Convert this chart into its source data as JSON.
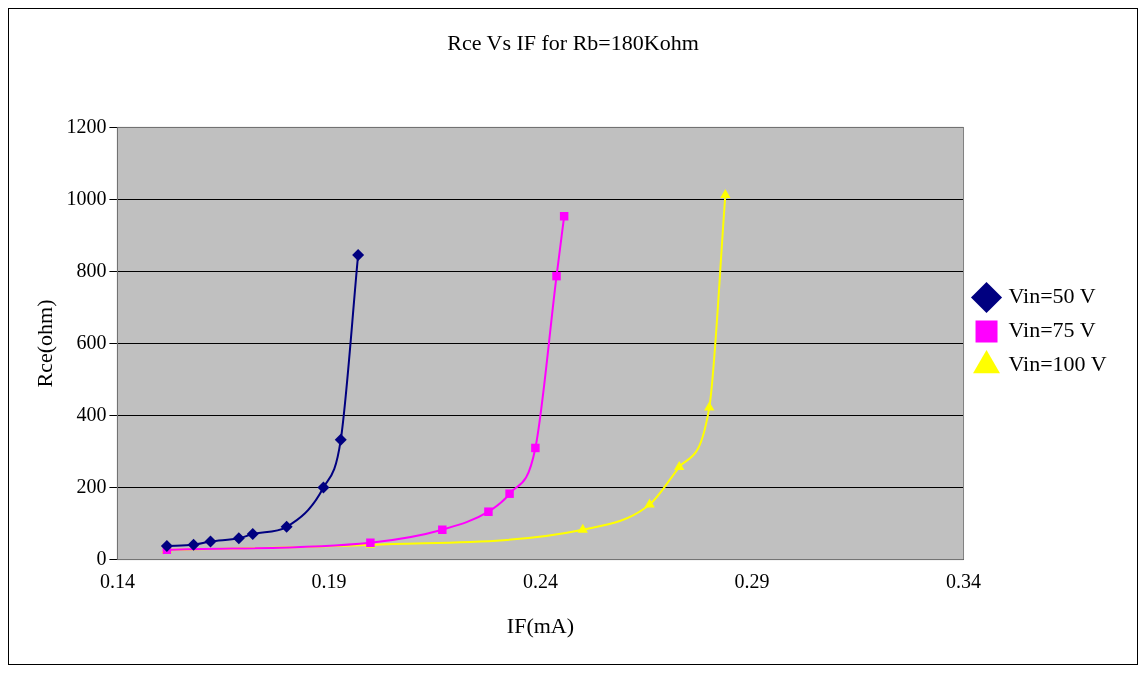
{
  "chart_data": {
    "type": "line",
    "title": "Rce Vs IF for Rb=180Kohm",
    "xlabel": "IF(mA)",
    "ylabel": "Rce(ohm)",
    "xlim": [
      0.14,
      0.34
    ],
    "xticks": [
      0.14,
      0.19,
      0.24,
      0.29,
      0.34
    ],
    "ylim": [
      0,
      1200
    ],
    "yticks": [
      0,
      200,
      400,
      600,
      800,
      1000,
      1200
    ],
    "grid": "y",
    "legend": "right",
    "series": [
      {
        "name": "Vin=50 V",
        "color": "#000080",
        "marker": "diamond",
        "x": [
          0.1517,
          0.158,
          0.162,
          0.1687,
          0.172,
          0.18,
          0.1887,
          0.1928,
          0.1969
        ],
        "values": [
          38,
          41,
          50,
          59,
          71,
          91,
          200,
          333,
          846
        ]
      },
      {
        "name": "Vin=75 V",
        "color": "#ff00ff",
        "marker": "square",
        "x": [
          0.1517,
          0.1998,
          0.2168,
          0.2277,
          0.2327,
          0.2388,
          0.2438,
          0.2456
        ],
        "values": [
          27,
          47,
          83,
          133,
          183,
          310,
          787,
          953
        ]
      },
      {
        "name": "Vin=100 V",
        "color": "#ffff00",
        "marker": "triangle",
        "x": [
          0.1517,
          0.1998,
          0.25,
          0.2658,
          0.2728,
          0.2799,
          0.2837
        ],
        "values": [
          27,
          41,
          83,
          153,
          257,
          422,
          1012
        ]
      }
    ]
  }
}
